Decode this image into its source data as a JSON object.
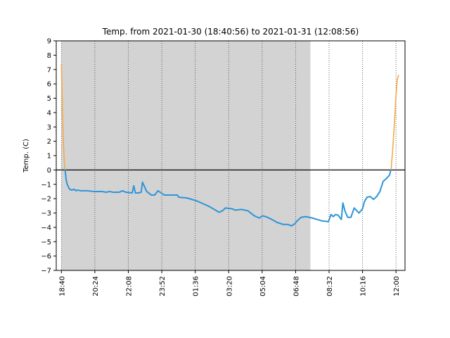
{
  "chart_data": {
    "type": "line",
    "title": "Temp. from 2021-01-30 (18:40:56) to 2021-01-31 (12:08:56)",
    "xlabel": "",
    "ylabel": "Temp. (C)",
    "ylim": [
      -7,
      9
    ],
    "yticks": [
      -7,
      -6,
      -5,
      -4,
      -3,
      -2,
      -1,
      0,
      1,
      2,
      3,
      4,
      5,
      6,
      7,
      8,
      9
    ],
    "xlim": [
      "2021-01-30T18:24",
      "2021-01-31T12:28"
    ],
    "xticks": [
      {
        "t": "2021-01-30T18:40",
        "label": "18:40"
      },
      {
        "t": "2021-01-30T20:24",
        "label": "20:24"
      },
      {
        "t": "2021-01-30T22:08",
        "label": "22:08"
      },
      {
        "t": "2021-01-30T23:52",
        "label": "23:52"
      },
      {
        "t": "2021-01-31T01:36",
        "label": "01:36"
      },
      {
        "t": "2021-01-31T03:20",
        "label": "03:20"
      },
      {
        "t": "2021-01-31T05:04",
        "label": "05:04"
      },
      {
        "t": "2021-01-31T06:48",
        "label": "06:48"
      },
      {
        "t": "2021-01-31T08:32",
        "label": "08:32"
      },
      {
        "t": "2021-01-31T10:16",
        "label": "10:16"
      },
      {
        "t": "2021-01-31T12:00",
        "label": "12:00"
      }
    ],
    "shaded_interval": [
      "2021-01-30T18:40",
      "2021-01-31T07:34"
    ],
    "zero_line": 0,
    "grid": "vertical dotted at x ticks",
    "colors": {
      "below_zero": "#2e95d8",
      "above_zero": "#f5aa4a",
      "shade": "#d3d3d3",
      "zero_line": "#000000"
    },
    "series": [
      {
        "points": [
          [
            "2021-01-30T18:40",
            7.3
          ],
          [
            "2021-01-30T18:43",
            4.5
          ],
          [
            "2021-01-30T18:46",
            2.0
          ],
          [
            "2021-01-30T18:49",
            0.6
          ],
          [
            "2021-01-30T18:52",
            -0.1
          ],
          [
            "2021-01-30T18:55",
            -0.7
          ],
          [
            "2021-01-30T18:58",
            -1.0
          ],
          [
            "2021-01-30T19:02",
            -1.2
          ],
          [
            "2021-01-30T19:06",
            -1.35
          ],
          [
            "2021-01-30T19:12",
            -1.4
          ],
          [
            "2021-01-30T19:20",
            -1.35
          ],
          [
            "2021-01-30T19:25",
            -1.45
          ],
          [
            "2021-01-30T19:30",
            -1.4
          ],
          [
            "2021-01-30T19:40",
            -1.45
          ],
          [
            "2021-01-30T20:00",
            -1.45
          ],
          [
            "2021-01-30T20:20",
            -1.5
          ],
          [
            "2021-01-30T20:30",
            -1.5
          ],
          [
            "2021-01-30T20:45",
            -1.5
          ],
          [
            "2021-01-30T21:00",
            -1.55
          ],
          [
            "2021-01-30T21:10",
            -1.5
          ],
          [
            "2021-01-30T21:20",
            -1.55
          ],
          [
            "2021-01-30T21:40",
            -1.55
          ],
          [
            "2021-01-30T21:50",
            -1.45
          ],
          [
            "2021-01-30T22:00",
            -1.55
          ],
          [
            "2021-01-30T22:20",
            -1.6
          ],
          [
            "2021-01-30T22:25",
            -1.1
          ],
          [
            "2021-01-30T22:30",
            -1.6
          ],
          [
            "2021-01-30T22:40",
            -1.6
          ],
          [
            "2021-01-30T22:48",
            -1.55
          ],
          [
            "2021-01-30T22:52",
            -0.85
          ],
          [
            "2021-01-30T22:57",
            -1.1
          ],
          [
            "2021-01-30T23:05",
            -1.5
          ],
          [
            "2021-01-30T23:20",
            -1.75
          ],
          [
            "2021-01-30T23:30",
            -1.75
          ],
          [
            "2021-01-30T23:40",
            -1.45
          ],
          [
            "2021-01-30T23:50",
            -1.6
          ],
          [
            "2021-01-31T00:00",
            -1.75
          ],
          [
            "2021-01-31T00:30",
            -1.75
          ],
          [
            "2021-01-31T00:40",
            -1.75
          ],
          [
            "2021-01-31T00:45",
            -1.9
          ],
          [
            "2021-01-31T01:10",
            -1.95
          ],
          [
            "2021-01-31T01:25",
            -2.05
          ],
          [
            "2021-01-31T01:40",
            -2.15
          ],
          [
            "2021-01-31T02:00",
            -2.35
          ],
          [
            "2021-01-31T02:20",
            -2.55
          ],
          [
            "2021-01-31T02:35",
            -2.75
          ],
          [
            "2021-01-31T02:50",
            -2.95
          ],
          [
            "2021-01-31T03:00",
            -2.85
          ],
          [
            "2021-01-31T03:10",
            -2.65
          ],
          [
            "2021-01-31T03:30",
            -2.7
          ],
          [
            "2021-01-31T03:40",
            -2.8
          ],
          [
            "2021-01-31T04:00",
            -2.75
          ],
          [
            "2021-01-31T04:20",
            -2.85
          ],
          [
            "2021-01-31T04:40",
            -3.2
          ],
          [
            "2021-01-31T04:55",
            -3.35
          ],
          [
            "2021-01-31T05:05",
            -3.2
          ],
          [
            "2021-01-31T05:15",
            -3.25
          ],
          [
            "2021-01-31T05:30",
            -3.4
          ],
          [
            "2021-01-31T05:50",
            -3.65
          ],
          [
            "2021-01-31T06:10",
            -3.8
          ],
          [
            "2021-01-31T06:25",
            -3.8
          ],
          [
            "2021-01-31T06:35",
            -3.9
          ],
          [
            "2021-01-31T06:45",
            -3.75
          ],
          [
            "2021-01-31T06:55",
            -3.5
          ],
          [
            "2021-01-31T07:05",
            -3.3
          ],
          [
            "2021-01-31T07:20",
            -3.25
          ],
          [
            "2021-01-31T07:40",
            -3.35
          ],
          [
            "2021-01-31T07:55",
            -3.45
          ],
          [
            "2021-01-31T08:10",
            -3.55
          ],
          [
            "2021-01-31T08:30",
            -3.6
          ],
          [
            "2021-01-31T08:38",
            -3.1
          ],
          [
            "2021-01-31T08:45",
            -3.25
          ],
          [
            "2021-01-31T08:52",
            -3.1
          ],
          [
            "2021-01-31T09:00",
            -3.15
          ],
          [
            "2021-01-31T09:10",
            -3.45
          ],
          [
            "2021-01-31T09:15",
            -2.3
          ],
          [
            "2021-01-31T09:22",
            -2.9
          ],
          [
            "2021-01-31T09:30",
            -3.3
          ],
          [
            "2021-01-31T09:40",
            -3.3
          ],
          [
            "2021-01-31T09:50",
            -2.65
          ],
          [
            "2021-01-31T10:05",
            -3.0
          ],
          [
            "2021-01-31T10:16",
            -2.7
          ],
          [
            "2021-01-31T10:22",
            -2.2
          ],
          [
            "2021-01-31T10:30",
            -1.9
          ],
          [
            "2021-01-31T10:40",
            -1.85
          ],
          [
            "2021-01-31T10:50",
            -2.05
          ],
          [
            "2021-01-31T11:00",
            -1.85
          ],
          [
            "2021-01-31T11:10",
            -1.5
          ],
          [
            "2021-01-31T11:20",
            -0.8
          ],
          [
            "2021-01-31T11:30",
            -0.6
          ],
          [
            "2021-01-31T11:40",
            -0.35
          ],
          [
            "2021-01-31T11:45",
            0.1
          ],
          [
            "2021-01-31T11:50",
            1.5
          ],
          [
            "2021-01-31T11:55",
            3.2
          ],
          [
            "2021-01-31T12:00",
            5.2
          ],
          [
            "2021-01-31T12:04",
            6.3
          ],
          [
            "2021-01-31T12:08",
            6.6
          ]
        ]
      }
    ]
  }
}
